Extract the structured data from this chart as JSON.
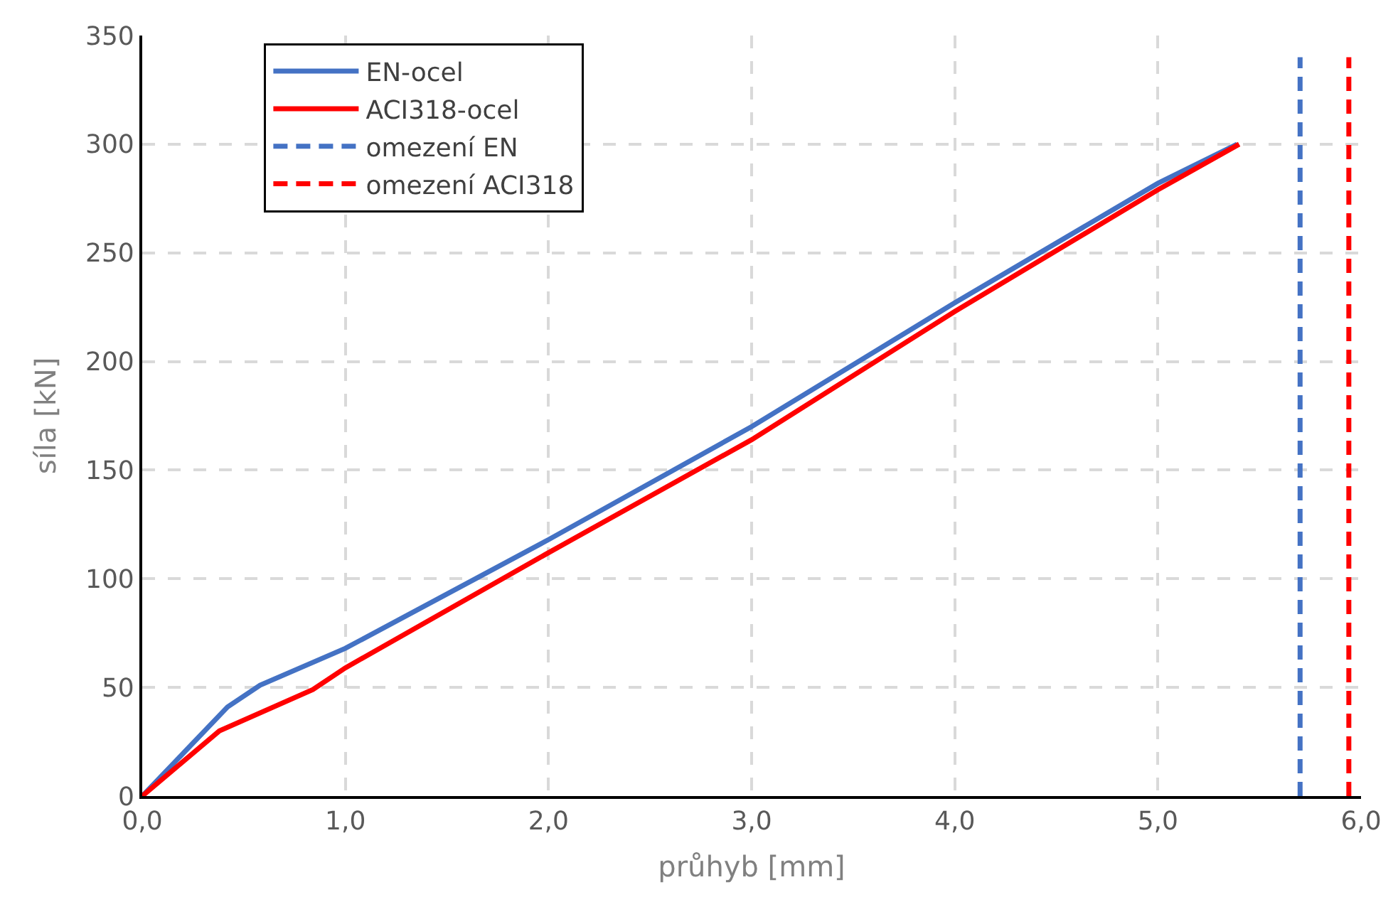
{
  "chart_data": {
    "type": "line",
    "xlabel": "průhyb [mm]",
    "ylabel": "síla [kN]",
    "xlim": [
      0,
      6
    ],
    "ylim": [
      0,
      350
    ],
    "xticks": [
      {
        "value": 0,
        "label": "0,0"
      },
      {
        "value": 1,
        "label": "1,0"
      },
      {
        "value": 2,
        "label": "2,0"
      },
      {
        "value": 3,
        "label": "3,0"
      },
      {
        "value": 4,
        "label": "4,0"
      },
      {
        "value": 5,
        "label": "5,0"
      },
      {
        "value": 6,
        "label": "6,0"
      }
    ],
    "yticks": [
      0,
      50,
      100,
      150,
      200,
      250,
      300,
      350
    ],
    "grid": true,
    "legend": "top left",
    "marker": "none",
    "series": [
      {
        "name": "EN-ocel",
        "color": "#4472c4",
        "line_style": "solid",
        "x": [
          0,
          0.42,
          0.58,
          1.0,
          2.0,
          3.0,
          4.0,
          5.0,
          5.39
        ],
        "values": [
          0,
          41,
          51,
          68,
          118,
          170,
          227,
          282,
          300
        ]
      },
      {
        "name": "ACI318-ocel",
        "color": "#ff0000",
        "line_style": "solid",
        "x": [
          0,
          0.38,
          0.84,
          1.0,
          2.0,
          3.0,
          4.0,
          5.0,
          5.4
        ],
        "values": [
          0,
          30,
          49,
          59,
          112,
          164,
          223,
          279,
          300
        ]
      },
      {
        "name": "omezení EN",
        "color": "#4472c4",
        "line_style": "dashed",
        "x": [
          5.7,
          5.7
        ],
        "values": [
          0,
          340
        ]
      },
      {
        "name": "omezení ACI318",
        "color": "#ff0000",
        "line_style": "dashed",
        "x": [
          5.94,
          5.94
        ],
        "values": [
          0,
          340
        ]
      }
    ]
  }
}
